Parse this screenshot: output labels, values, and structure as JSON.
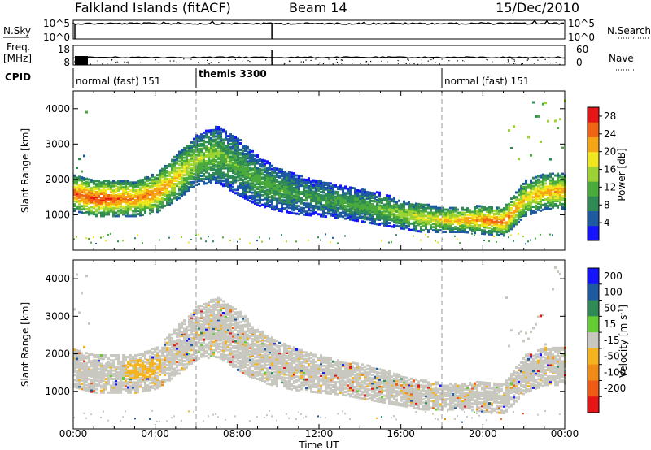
{
  "header": {
    "title": "Falkland Islands (fitACF)",
    "beam": "Beam 14",
    "date": "15/Dec/2010"
  },
  "status_panels": {
    "nsky_label": "N.Sky",
    "nsearch_label": "N.Search",
    "nsky_ticks": [
      "10^5",
      "10^0"
    ],
    "nsearch_ticks": [
      "10^5",
      "10^0"
    ],
    "freq_label_1": "Freq.",
    "freq_label_2": "[MHz]",
    "freq_ticks": [
      "18",
      "8"
    ],
    "nave_label": "Nave",
    "nave_ticks": [
      "60",
      "0"
    ],
    "cpid_label": "CPID",
    "cpid_segments": [
      {
        "label": "normal (fast) 151",
        "start_hour": 0
      },
      {
        "label": "themis 3300",
        "start_hour": 6
      },
      {
        "label": "normal (fast) 151",
        "start_hour": 18
      }
    ]
  },
  "colors": {
    "power": [
      "#1414ff",
      "#1e5aa0",
      "#2f8a55",
      "#4aaa3c",
      "#9cd232",
      "#f0e61e",
      "#f5a514",
      "#f06414",
      "#e61414"
    ],
    "velocity": [
      "#1414ff",
      "#1e5aa0",
      "#2f8a55",
      "#66cc33",
      "#c8c8c0",
      "#f5b41e",
      "#f08c14",
      "#f05a14",
      "#e61414"
    ]
  },
  "chart_data": [
    {
      "type": "heatmap",
      "quantity": "power",
      "ylabel": "Slant Range [km]",
      "xlabel": "Time UT",
      "x_ticks": [
        "00:00",
        "04:00",
        "08:00",
        "12:00",
        "16:00",
        "20:00",
        "00:00"
      ],
      "xlim_hours": [
        0,
        24
      ],
      "ylim": [
        0,
        4500
      ],
      "y_ticks": [
        1000,
        2000,
        3000,
        4000
      ],
      "colorbar_label": "Power [dB]",
      "colorbar_ticks": [
        4,
        8,
        12,
        16,
        20,
        24,
        28
      ],
      "colorbar_range": [
        0,
        30
      ],
      "dashed_lines_hours": [
        6,
        18
      ],
      "bands": [
        {
          "hours": [
            0,
            1,
            2,
            3,
            4,
            5,
            6,
            7,
            8,
            9,
            10,
            11,
            12,
            13,
            14,
            15,
            16,
            17,
            18,
            19,
            20,
            21,
            22,
            23,
            24
          ],
          "center_km": [
            1650,
            1500,
            1500,
            1500,
            1650,
            2100,
            2600,
            2750,
            2400,
            2000,
            1750,
            1600,
            1500,
            1400,
            1300,
            1200,
            1050,
            950,
            900,
            900,
            900,
            850,
            1500,
            1700,
            1700
          ],
          "width_km": [
            500,
            500,
            500,
            500,
            550,
            650,
            700,
            800,
            800,
            700,
            600,
            550,
            500,
            450,
            450,
            450,
            400,
            400,
            350,
            350,
            400,
            400,
            500,
            500,
            500
          ],
          "power_db": [
            26,
            28,
            26,
            24,
            24,
            20,
            16,
            14,
            12,
            12,
            12,
            10,
            10,
            12,
            12,
            14,
            16,
            18,
            20,
            22,
            24,
            26,
            20,
            22,
            22
          ]
        }
      ]
    },
    {
      "type": "heatmap",
      "quantity": "velocity",
      "ylabel": "Slant Range [km]",
      "xlabel": "Time UT",
      "x_ticks": [
        "00:00",
        "04:00",
        "08:00",
        "12:00",
        "16:00",
        "20:00",
        "00:00"
      ],
      "xlim_hours": [
        0,
        24
      ],
      "ylim": [
        0,
        4500
      ],
      "y_ticks": [
        1000,
        2000,
        3000,
        4000
      ],
      "colorbar_label": "Velocity [m s^-1]",
      "colorbar_ticks": [
        200,
        100,
        50,
        15,
        -15,
        -50,
        -100,
        -200
      ],
      "dashed_lines_hours": [
        6,
        18
      ],
      "dominant_velocity": "-15 to 15 (ground scatter)"
    }
  ]
}
